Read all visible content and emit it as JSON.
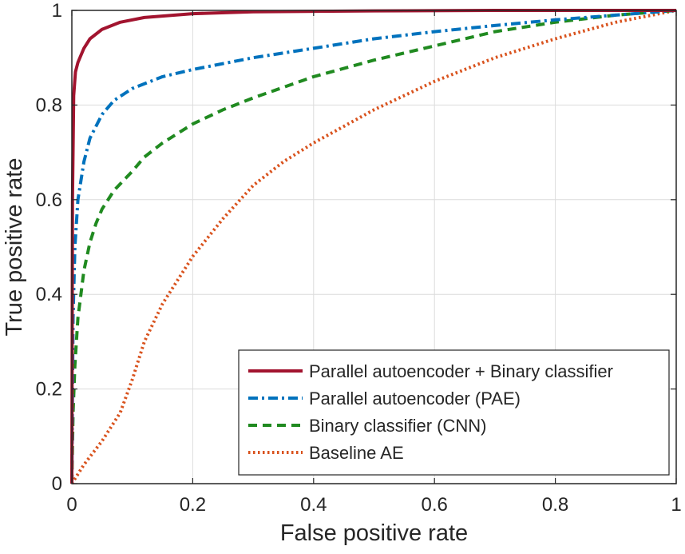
{
  "chart_data": {
    "type": "line",
    "xlabel": "False positive rate",
    "ylabel": "True positive rate",
    "xlim": [
      0,
      1
    ],
    "ylim": [
      0,
      1
    ],
    "xticks": [
      0,
      0.2,
      0.4,
      0.6,
      0.8,
      1
    ],
    "yticks": [
      0,
      0.2,
      0.4,
      0.6,
      0.8,
      1
    ],
    "xtick_labels": [
      "0",
      "0.2",
      "0.4",
      "0.6",
      "0.8",
      "1"
    ],
    "ytick_labels": [
      "0",
      "0.2",
      "0.4",
      "0.6",
      "0.8",
      "1"
    ],
    "grid": true,
    "legend_position": "bottom-right",
    "series": [
      {
        "name": "Parallel autoencoder + Binary classifier",
        "color": "#a2142f",
        "dash": "solid",
        "x": [
          0,
          0.001,
          0.003,
          0.006,
          0.01,
          0.02,
          0.03,
          0.05,
          0.08,
          0.12,
          0.2,
          0.3,
          0.5,
          0.7,
          1.0
        ],
        "y": [
          0,
          0.6,
          0.82,
          0.87,
          0.89,
          0.92,
          0.94,
          0.96,
          0.975,
          0.985,
          0.993,
          0.997,
          0.999,
          1.0,
          1.0
        ]
      },
      {
        "name": "Parallel autoencoder (PAE)",
        "color": "#0072bd",
        "dash": "dashdot",
        "x": [
          0,
          0.002,
          0.005,
          0.01,
          0.02,
          0.03,
          0.05,
          0.07,
          0.1,
          0.15,
          0.2,
          0.3,
          0.4,
          0.5,
          0.6,
          0.7,
          0.8,
          0.9,
          1.0
        ],
        "y": [
          0,
          0.35,
          0.5,
          0.6,
          0.68,
          0.73,
          0.78,
          0.81,
          0.835,
          0.86,
          0.875,
          0.9,
          0.92,
          0.94,
          0.955,
          0.968,
          0.98,
          0.99,
          1.0
        ]
      },
      {
        "name": "Binary classifier (CNN)",
        "color": "#208a20",
        "dash": "dashed",
        "x": [
          0,
          0.002,
          0.005,
          0.01,
          0.02,
          0.03,
          0.04,
          0.05,
          0.07,
          0.1,
          0.12,
          0.15,
          0.2,
          0.25,
          0.3,
          0.4,
          0.5,
          0.6,
          0.7,
          0.8,
          0.9,
          1.0
        ],
        "y": [
          0,
          0.15,
          0.25,
          0.35,
          0.45,
          0.51,
          0.55,
          0.58,
          0.62,
          0.66,
          0.69,
          0.72,
          0.76,
          0.79,
          0.815,
          0.86,
          0.895,
          0.925,
          0.955,
          0.975,
          0.99,
          1.0
        ]
      },
      {
        "name": "Baseline AE",
        "color": "#d9531e",
        "dash": "dotted",
        "x": [
          0,
          0.02,
          0.05,
          0.08,
          0.1,
          0.12,
          0.15,
          0.2,
          0.25,
          0.3,
          0.35,
          0.4,
          0.5,
          0.6,
          0.7,
          0.8,
          0.9,
          1.0
        ],
        "y": [
          0,
          0.04,
          0.09,
          0.15,
          0.22,
          0.3,
          0.38,
          0.48,
          0.56,
          0.63,
          0.68,
          0.72,
          0.79,
          0.85,
          0.9,
          0.94,
          0.975,
          1.0
        ]
      }
    ]
  }
}
